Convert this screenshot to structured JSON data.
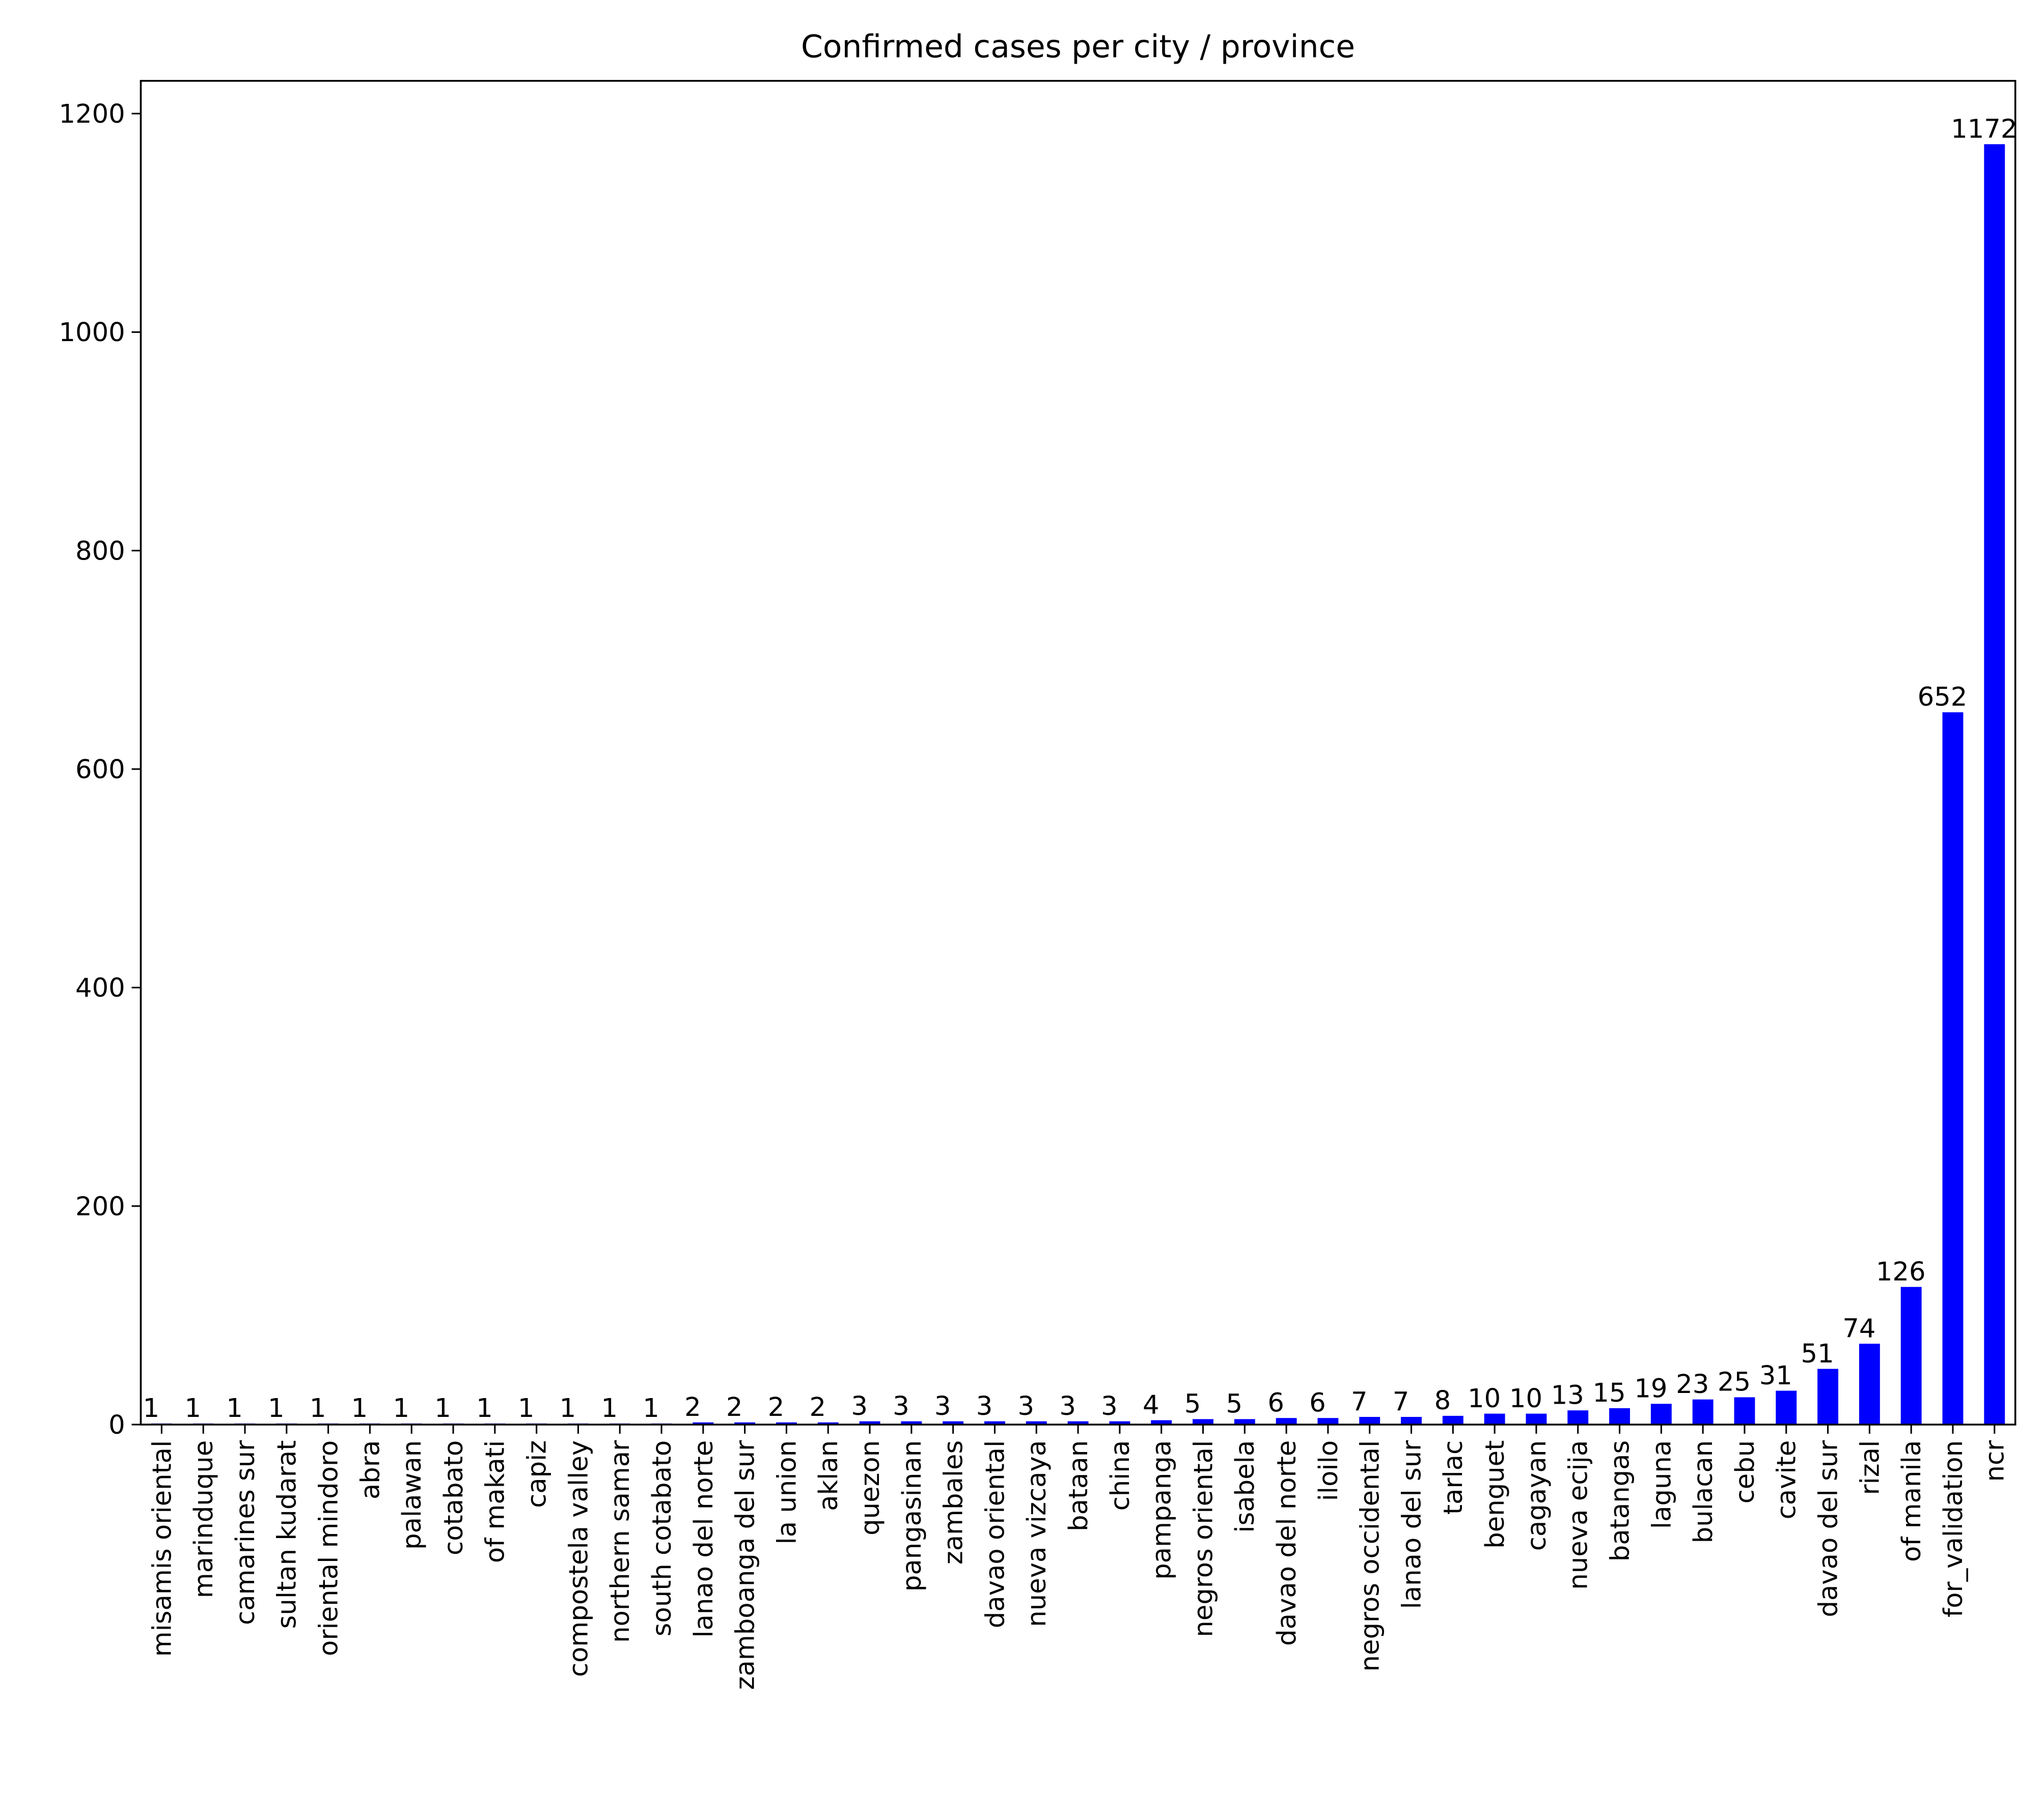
{
  "chart_data": {
    "type": "bar",
    "title": "Confirmed cases per city / province",
    "categories": [
      "misamis oriental",
      "marinduque",
      "camarines sur",
      "sultan kudarat",
      "oriental mindoro",
      "abra",
      "palawan",
      "cotabato",
      "of makati",
      "capiz",
      "compostela valley",
      "northern samar",
      "south cotabato",
      "lanao del norte",
      "zamboanga del sur",
      "la union",
      "aklan",
      "quezon",
      "pangasinan",
      "zambales",
      "davao oriental",
      "nueva vizcaya",
      "bataan",
      "china",
      "pampanga",
      "negros oriental",
      "isabela",
      "davao del norte",
      "iloilo",
      "negros occidental",
      "lanao del sur",
      "tarlac",
      "benguet",
      "cagayan",
      "nueva ecija",
      "batangas",
      "laguna",
      "bulacan",
      "cebu",
      "cavite",
      "davao del sur",
      "rizal",
      "of manila",
      "for_validation",
      "ncr"
    ],
    "values": [
      1,
      1,
      1,
      1,
      1,
      1,
      1,
      1,
      1,
      1,
      1,
      1,
      1,
      2,
      2,
      2,
      2,
      3,
      3,
      3,
      3,
      3,
      3,
      3,
      4,
      5,
      5,
      6,
      6,
      7,
      7,
      8,
      10,
      10,
      13,
      15,
      19,
      23,
      25,
      31,
      51,
      74,
      126,
      652,
      1172
    ],
    "color": "#0000ff",
    "ylim": [
      0,
      1230
    ],
    "yticks": [
      0,
      200,
      400,
      600,
      800,
      1000,
      1200
    ]
  }
}
